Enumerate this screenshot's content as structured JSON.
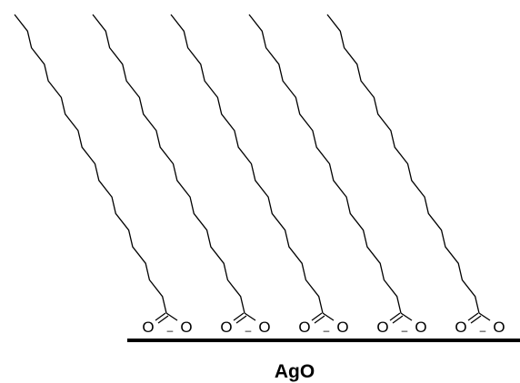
{
  "surface": {
    "label": "AgO"
  },
  "carboxylate": {
    "oxygen_symbol": "O",
    "charge_symbol": "–"
  },
  "molecule_count": 5,
  "colors": {
    "ink": "#000000",
    "background": "#ffffff"
  }
}
